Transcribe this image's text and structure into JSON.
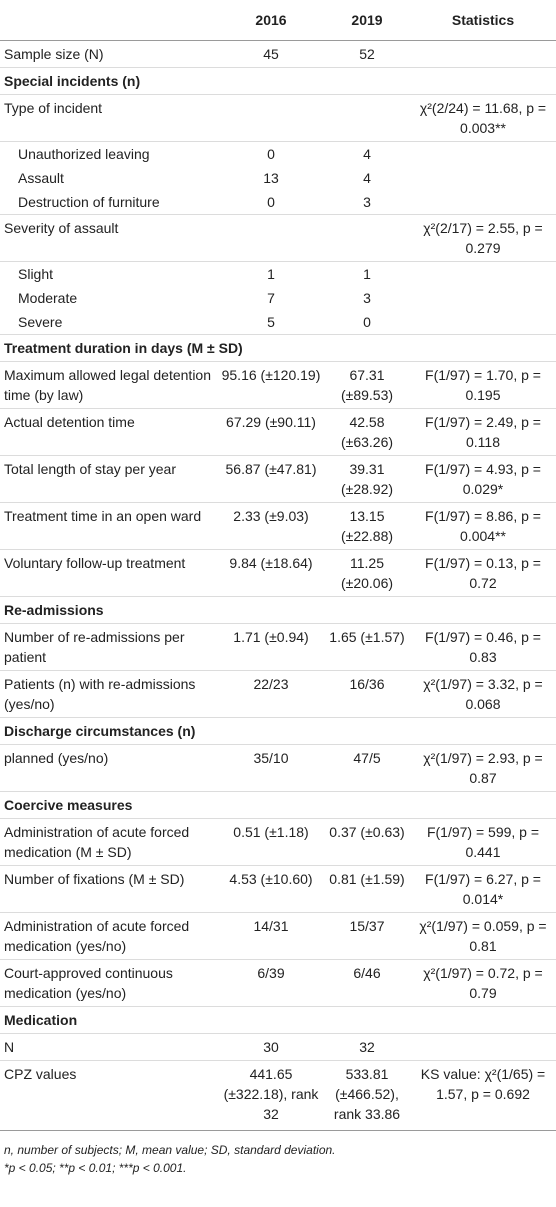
{
  "header": {
    "col1": "",
    "col2": "2016",
    "col3": "2019",
    "col4": "Statistics"
  },
  "rows": [
    {
      "kind": "row",
      "label": "Sample size (N)",
      "v2016": "45",
      "v2019": "52",
      "stat": ""
    },
    {
      "kind": "sec",
      "label": "Special incidents (n)"
    },
    {
      "kind": "row",
      "label": "Type of incident",
      "v2016": "",
      "v2019": "",
      "stat": "χ²(2/24) = 11.68, p = 0.003**"
    },
    {
      "kind": "sub",
      "label": "Unauthorized leaving",
      "v2016": "0",
      "v2019": "4",
      "stat": ""
    },
    {
      "kind": "sub",
      "label": "Assault",
      "v2016": "13",
      "v2019": "4",
      "stat": ""
    },
    {
      "kind": "sub-last",
      "label": "Destruction of furniture",
      "v2016": "0",
      "v2019": "3",
      "stat": ""
    },
    {
      "kind": "row",
      "label": "Severity of assault",
      "v2016": "",
      "v2019": "",
      "stat": "χ²(2/17) = 2.55, p = 0.279"
    },
    {
      "kind": "sub",
      "label": "Slight",
      "v2016": "1",
      "v2019": "1",
      "stat": ""
    },
    {
      "kind": "sub",
      "label": "Moderate",
      "v2016": "7",
      "v2019": "3",
      "stat": ""
    },
    {
      "kind": "sub-last",
      "label": "Severe",
      "v2016": "5",
      "v2019": "0",
      "stat": ""
    },
    {
      "kind": "sec",
      "label": "Treatment duration in days (M ± SD)"
    },
    {
      "kind": "row",
      "label": "Maximum allowed legal detention time (by law)",
      "v2016": "95.16 (±120.19)",
      "v2019": "67.31 (±89.53)",
      "stat": "F(1/97) = 1.70, p = 0.195"
    },
    {
      "kind": "row",
      "label": "Actual detention time",
      "v2016": "67.29 (±90.11)",
      "v2019": "42.58 (±63.26)",
      "stat": "F(1/97) = 2.49, p = 0.118"
    },
    {
      "kind": "row",
      "label": "Total length of stay per year",
      "v2016": "56.87 (±47.81)",
      "v2019": "39.31 (±28.92)",
      "stat": "F(1/97) = 4.93, p = 0.029*"
    },
    {
      "kind": "row",
      "label": "Treatment time in an open ward",
      "v2016": "2.33 (±9.03)",
      "v2019": "13.15 (±22.88)",
      "stat": "F(1/97) = 8.86, p = 0.004**"
    },
    {
      "kind": "row",
      "label": "Voluntary follow-up treatment",
      "v2016": "9.84 (±18.64)",
      "v2019": "11.25 (±20.06)",
      "stat": "F(1/97) = 0.13, p = 0.72"
    },
    {
      "kind": "sec",
      "label": "Re-admissions"
    },
    {
      "kind": "row",
      "label": "Number of re-admissions per patient",
      "v2016": "1.71 (±0.94)",
      "v2019": "1.65 (±1.57)",
      "stat": "F(1/97) = 0.46, p = 0.83"
    },
    {
      "kind": "row",
      "label": "Patients (n) with re-admissions (yes/no)",
      "v2016": "22/23",
      "v2019": "16/36",
      "stat": "χ²(1/97) = 3.32, p = 0.068"
    },
    {
      "kind": "sec",
      "label": "Discharge circumstances (n)"
    },
    {
      "kind": "row",
      "label": "planned (yes/no)",
      "v2016": "35/10",
      "v2019": "47/5",
      "stat": "χ²(1/97) = 2.93, p = 0.87"
    },
    {
      "kind": "sec",
      "label": "Coercive measures"
    },
    {
      "kind": "row",
      "label": "Administration of acute forced medication (M ± SD)",
      "v2016": "0.51 (±1.18)",
      "v2019": "0.37 (±0.63)",
      "stat": "F(1/97) = 599, p = 0.441"
    },
    {
      "kind": "row",
      "label": "Number of fixations (M ± SD)",
      "v2016": "4.53 (±10.60)",
      "v2019": "0.81 (±1.59)",
      "stat": "F(1/97) = 6.27, p = 0.014*"
    },
    {
      "kind": "row",
      "label": "Administration of acute forced medication (yes/no)",
      "v2016": "14/31",
      "v2019": "15/37",
      "stat": "χ²(1/97) = 0.059, p = 0.81"
    },
    {
      "kind": "row",
      "label": "Court-approved continuous medication (yes/no)",
      "v2016": "6/39",
      "v2019": "6/46",
      "stat": "χ²(1/97) = 0.72, p = 0.79"
    },
    {
      "kind": "sec",
      "label": "Medication"
    },
    {
      "kind": "row",
      "label": "N",
      "v2016": "30",
      "v2019": "32",
      "stat": ""
    },
    {
      "kind": "last",
      "label": "CPZ values",
      "v2016": "441.65 (±322.18), rank 32",
      "v2019": "533.81 (±466.52), rank 33.86",
      "stat": "KS value: χ²(1/65) = 1.57, p = 0.692"
    }
  ],
  "footnotes": {
    "line1": "n, number of subjects; M, mean value; SD, standard deviation.",
    "line2": "*p < 0.05; **p < 0.01; ***p < 0.001."
  }
}
